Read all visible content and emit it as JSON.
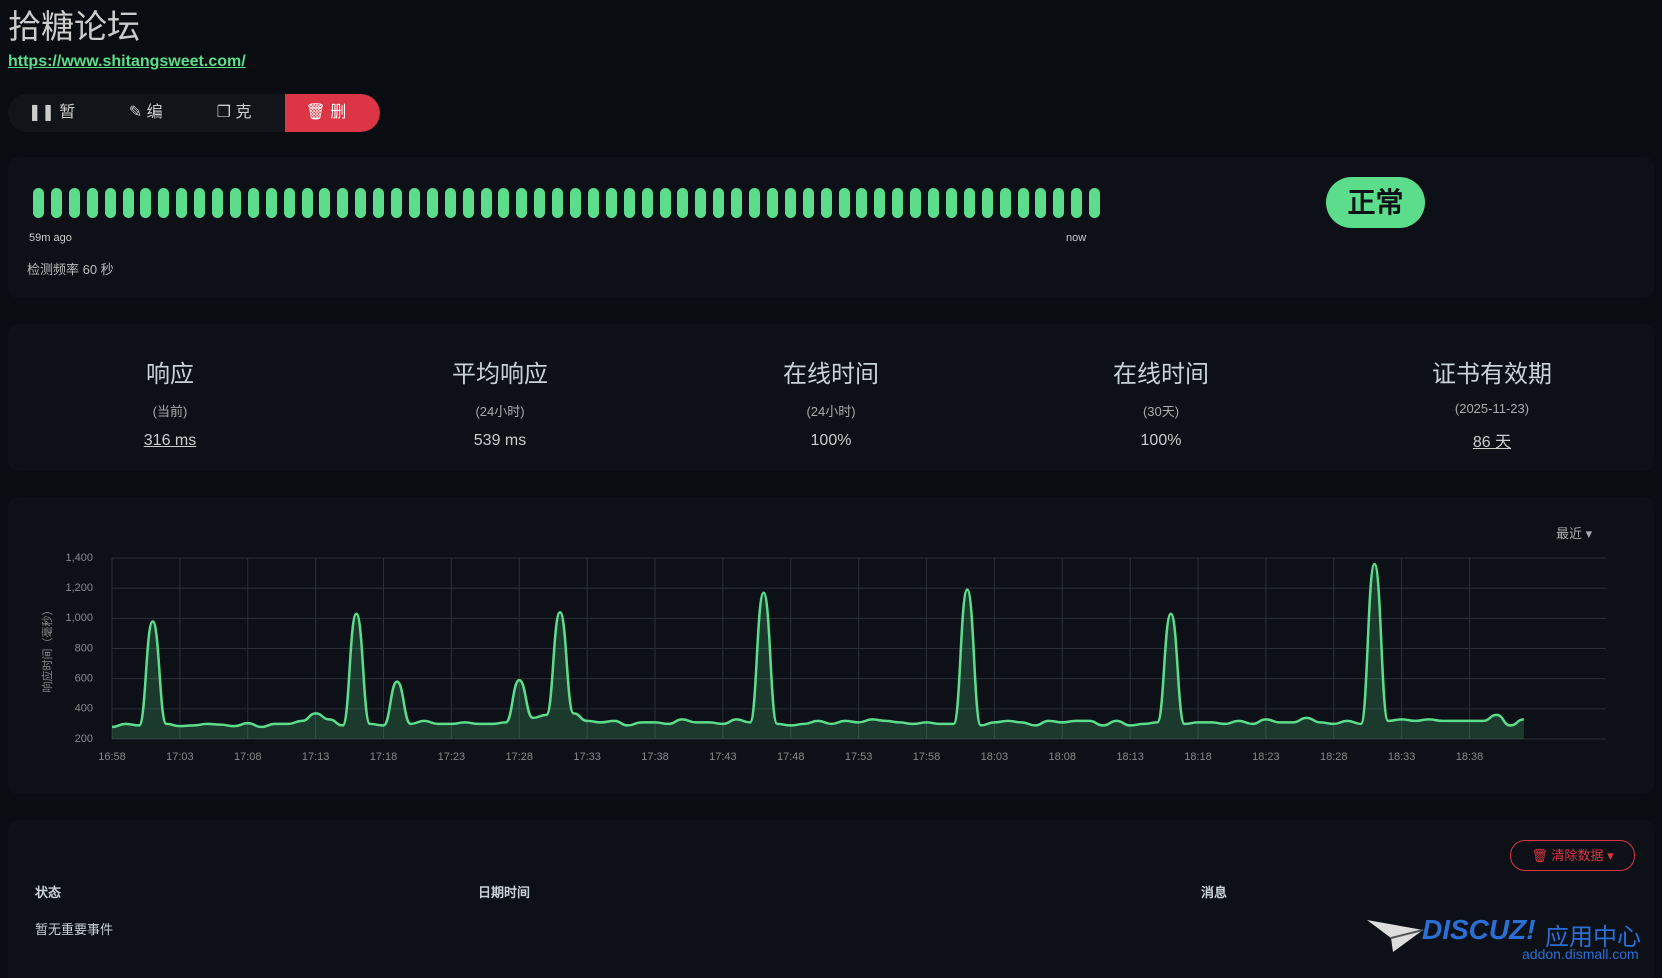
{
  "header": {
    "title": "拾糖论坛",
    "url": "https://www.shitangsweet.com/"
  },
  "buttons": [
    "暂停",
    "编辑",
    "克隆",
    "删除"
  ],
  "heartbeat": {
    "start_label": "59m ago",
    "end_label": "now",
    "interval": "检测频率 60 秒",
    "status": "正常"
  },
  "stats": [
    {
      "title": "响应",
      "sub": "(当前)",
      "value": "316 ms"
    },
    {
      "title": "平均响应",
      "sub": "(24小时)",
      "value": "539 ms"
    },
    {
      "title": "在线时间",
      "sub": "(24小时)",
      "value": "100%"
    },
    {
      "title": "在线时间",
      "sub": "(30天)",
      "value": "100%"
    },
    {
      "title": "证书有效期",
      "sub": "(2025-11-23)",
      "value": "86 天"
    }
  ],
  "chart_data": {
    "type": "line",
    "range_selector": "最近",
    "y_label": "响应时间（毫秒）",
    "categories": [
      "16:58",
      null,
      null,
      null,
      null,
      "17:03",
      null,
      null,
      null,
      null,
      "17:08",
      null,
      null,
      null,
      null,
      "17:13",
      null,
      null,
      null,
      null,
      "17:18",
      null,
      null,
      null,
      null,
      "17:23",
      null,
      null,
      null,
      null,
      "17:28",
      null,
      null,
      null,
      null,
      "17:33",
      null,
      null,
      null,
      null,
      "17:38",
      null,
      null,
      null,
      null,
      "17:43",
      null,
      null,
      null,
      null,
      "17:48",
      null,
      null,
      null,
      null,
      "17:53",
      null,
      null,
      null,
      null,
      "17:58",
      null,
      null,
      null,
      null,
      "18:03",
      null,
      null,
      null,
      null,
      "18:08",
      null,
      null,
      null,
      null,
      "18:13",
      null,
      null,
      null,
      null,
      "18:18",
      null,
      null,
      null,
      null,
      "18:23",
      null,
      null,
      null,
      null,
      "18:28",
      null,
      null,
      null,
      null,
      "18:33",
      null,
      null,
      null,
      null,
      "18:38",
      null,
      null,
      null,
      null
    ],
    "series": [
      {
        "color": "#5cdd8b",
        "values": [
          280,
          300,
          290,
          980,
          300,
          285,
          290,
          300,
          295,
          285,
          305,
          280,
          300,
          300,
          320,
          370,
          330,
          290,
          1030,
          300,
          290,
          580,
          300,
          320,
          300,
          300,
          310,
          300,
          300,
          310,
          590,
          340,
          360,
          1040,
          370,
          320,
          310,
          320,
          290,
          310,
          310,
          300,
          330,
          310,
          310,
          300,
          330,
          310,
          1170,
          300,
          290,
          300,
          320,
          300,
          320,
          310,
          330,
          320,
          310,
          300,
          310,
          300,
          300,
          1190,
          290,
          310,
          320,
          310,
          290,
          320,
          310,
          320,
          320,
          290,
          320,
          290,
          300,
          310,
          1030,
          300,
          310,
          310,
          300,
          320,
          300,
          330,
          310,
          310,
          340,
          310,
          300,
          320,
          300,
          1360,
          320,
          330,
          320,
          330,
          320,
          320,
          320,
          320,
          360,
          290,
          330
        ]
      }
    ],
    "ylim": [
      200,
      1400
    ],
    "yticks": [
      200,
      400,
      600,
      800,
      {
        "value": 1000,
        "label": "1,000"
      },
      {
        "value": 1200,
        "label": "1,200"
      },
      {
        "value": 1400,
        "label": "1,400"
      }
    ],
    "grid": true
  },
  "events": {
    "clear_button": "清除数据",
    "headers": [
      "状态",
      "日期时间",
      "消息"
    ],
    "empty": "暂无重要事件"
  },
  "watermark": {
    "brand": "DISCUZ!",
    "name": "应用中心",
    "site": "addon.dismall.com"
  }
}
